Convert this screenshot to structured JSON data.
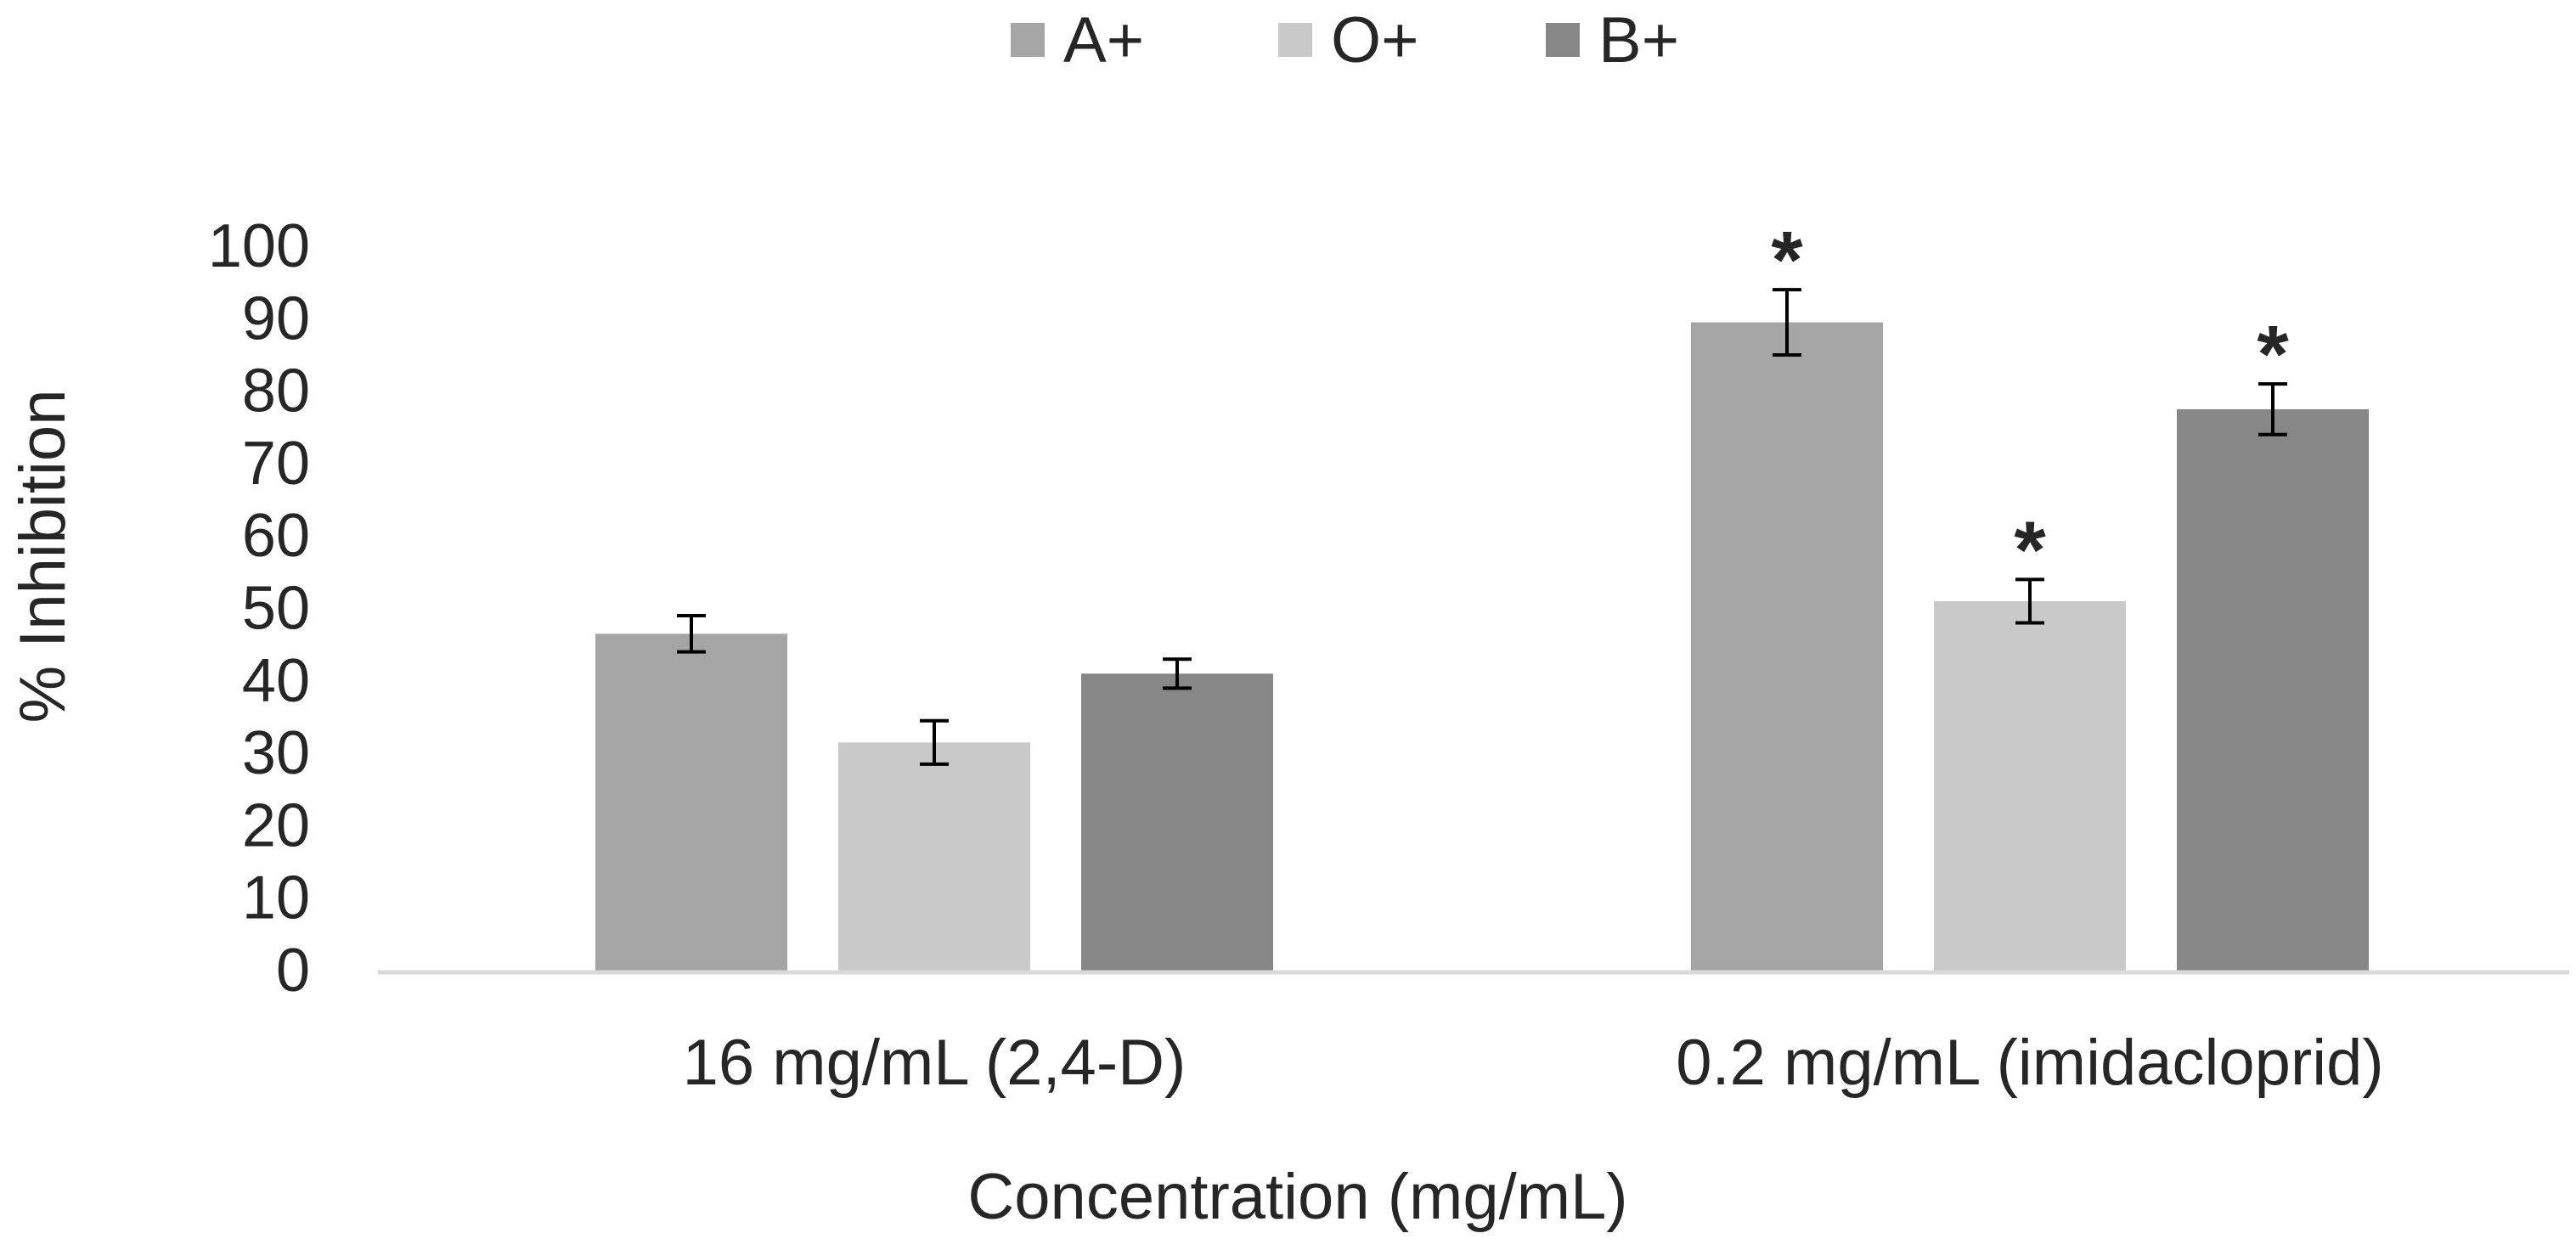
{
  "chart_data": {
    "type": "bar",
    "title": "",
    "xlabel": "Concentration (mg/mL)",
    "ylabel": "% Inhibition",
    "ylim": [
      0,
      100
    ],
    "yticks": [
      "0",
      "10",
      "20",
      "30",
      "40",
      "50",
      "60",
      "70",
      "80",
      "90",
      "100"
    ],
    "grid": false,
    "legend_position": "top-center",
    "categories": [
      "16 mg/mL (2,4-D)",
      "0.2 mg/mL (imidacloprid)"
    ],
    "significance_marker": "*",
    "series": [
      {
        "name": "A+",
        "color": "#a5a5a5",
        "values": [
          46.5,
          89.5
        ],
        "errors": [
          2.5,
          4.5
        ],
        "significant": [
          false,
          true
        ]
      },
      {
        "name": "O+",
        "color": "#c9c9c9",
        "values": [
          31.5,
          51.0
        ],
        "errors": [
          3.0,
          3.0
        ],
        "significant": [
          false,
          true
        ]
      },
      {
        "name": "B+",
        "color": "#878787",
        "values": [
          41.0,
          77.5
        ],
        "errors": [
          2.0,
          3.5
        ],
        "significant": [
          false,
          true
        ]
      }
    ]
  }
}
